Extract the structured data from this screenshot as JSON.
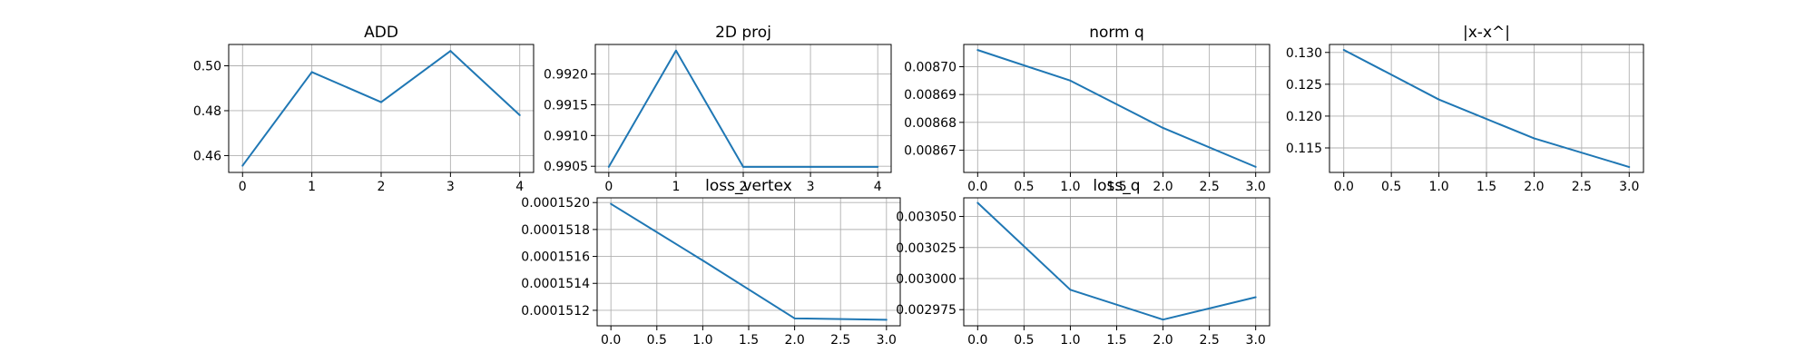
{
  "chart_data": [
    {
      "type": "line",
      "title": "ADD",
      "x": [
        0,
        1,
        2,
        3,
        4
      ],
      "series": [
        {
          "values": [
            0.4555,
            0.4972,
            0.4838,
            0.5066,
            0.478
          ]
        }
      ],
      "xlim": [
        -0.2,
        4.2
      ],
      "ylim": [
        0.4525,
        0.5095
      ],
      "xticks": [
        0,
        1,
        2,
        3,
        4
      ],
      "xtick_labels": [
        "0",
        "1",
        "2",
        "3",
        "4"
      ],
      "yticks": [
        0.46,
        0.48,
        0.5
      ],
      "ytick_labels": [
        "0.46",
        "0.48",
        "0.50"
      ],
      "grid": true,
      "color": "#1f77b4"
    },
    {
      "type": "line",
      "title": "2D proj",
      "x": [
        0,
        1,
        2,
        3,
        4
      ],
      "series": [
        {
          "values": [
            0.99049,
            0.99238,
            0.99049,
            0.99049,
            0.99049
          ]
        }
      ],
      "xlim": [
        -0.2,
        4.2
      ],
      "ylim": [
        0.9904,
        0.99248
      ],
      "xticks": [
        0,
        1,
        2,
        3,
        4
      ],
      "xtick_labels": [
        "0",
        "1",
        "2",
        "3",
        "4"
      ],
      "yticks": [
        0.9905,
        0.991,
        0.9915,
        0.992
      ],
      "ytick_labels": [
        "0.9905",
        "0.9910",
        "0.9915",
        "0.9920"
      ],
      "grid": true,
      "color": "#1f77b4"
    },
    {
      "type": "line",
      "title": "norm q",
      "x": [
        0,
        1,
        2,
        3
      ],
      "series": [
        {
          "values": [
            0.008706,
            0.008695,
            0.008678,
            0.008664
          ]
        }
      ],
      "xlim": [
        -0.15,
        3.15
      ],
      "ylim": [
        0.008662,
        0.008708
      ],
      "xticks": [
        0,
        0.5,
        1,
        1.5,
        2,
        2.5,
        3
      ],
      "xtick_labels": [
        "0.0",
        "0.5",
        "1.0",
        "1.5",
        "2.0",
        "2.5",
        "3.0"
      ],
      "yticks": [
        0.00867,
        0.00868,
        0.00869,
        0.0087
      ],
      "ytick_labels": [
        "0.00867",
        "0.00868",
        "0.00869",
        "0.00870"
      ],
      "grid": true,
      "color": "#1f77b4"
    },
    {
      "type": "line",
      "title": "|x-x^|",
      "x": [
        0,
        1,
        2,
        3
      ],
      "series": [
        {
          "values": [
            0.1304,
            0.1226,
            0.1165,
            0.112
          ]
        }
      ],
      "xlim": [
        -0.15,
        3.15
      ],
      "ylim": [
        0.11115,
        0.13125
      ],
      "xticks": [
        0,
        0.5,
        1,
        1.5,
        2,
        2.5,
        3
      ],
      "xtick_labels": [
        "0.0",
        "0.5",
        "1.0",
        "1.5",
        "2.0",
        "2.5",
        "3.0"
      ],
      "yticks": [
        0.115,
        0.12,
        0.125,
        0.13
      ],
      "ytick_labels": [
        "0.115",
        "0.120",
        "0.125",
        "0.130"
      ],
      "grid": true,
      "color": "#1f77b4"
    },
    {
      "type": "line",
      "title": "loss_vertex",
      "x": [
        0,
        1,
        2,
        3
      ],
      "series": [
        {
          "values": [
            0.00015199,
            0.00015157,
            0.00015114,
            0.00015113
          ]
        }
      ],
      "xlim": [
        -0.15,
        3.15
      ],
      "ylim": [
        0.000151085,
        0.000152035
      ],
      "xticks": [
        0,
        0.5,
        1,
        1.5,
        2,
        2.5,
        3
      ],
      "xtick_labels": [
        "0.0",
        "0.5",
        "1.0",
        "1.5",
        "2.0",
        "2.5",
        "3.0"
      ],
      "yticks": [
        0.0001512,
        0.0001514,
        0.0001516,
        0.0001518,
        0.000152
      ],
      "ytick_labels": [
        "0.0001512",
        "0.0001514",
        "0.0001516",
        "0.0001518",
        "0.0001520"
      ],
      "grid": true,
      "color": "#1f77b4"
    },
    {
      "type": "line",
      "title": "loss_q",
      "x": [
        0,
        1,
        2,
        3
      ],
      "series": [
        {
          "values": [
            0.003061,
            0.002991,
            0.002967,
            0.002985
          ]
        }
      ],
      "xlim": [
        -0.15,
        3.15
      ],
      "ylim": [
        0.002962,
        0.003065
      ],
      "xticks": [
        0,
        0.5,
        1,
        1.5,
        2,
        2.5,
        3
      ],
      "xtick_labels": [
        "0.0",
        "0.5",
        "1.0",
        "1.5",
        "2.0",
        "2.5",
        "3.0"
      ],
      "yticks": [
        0.002975,
        0.003,
        0.003025,
        0.00305
      ],
      "ytick_labels": [
        "0.002975",
        "0.003000",
        "0.003025",
        "0.003050"
      ],
      "grid": true,
      "color": "#1f77b4"
    }
  ]
}
